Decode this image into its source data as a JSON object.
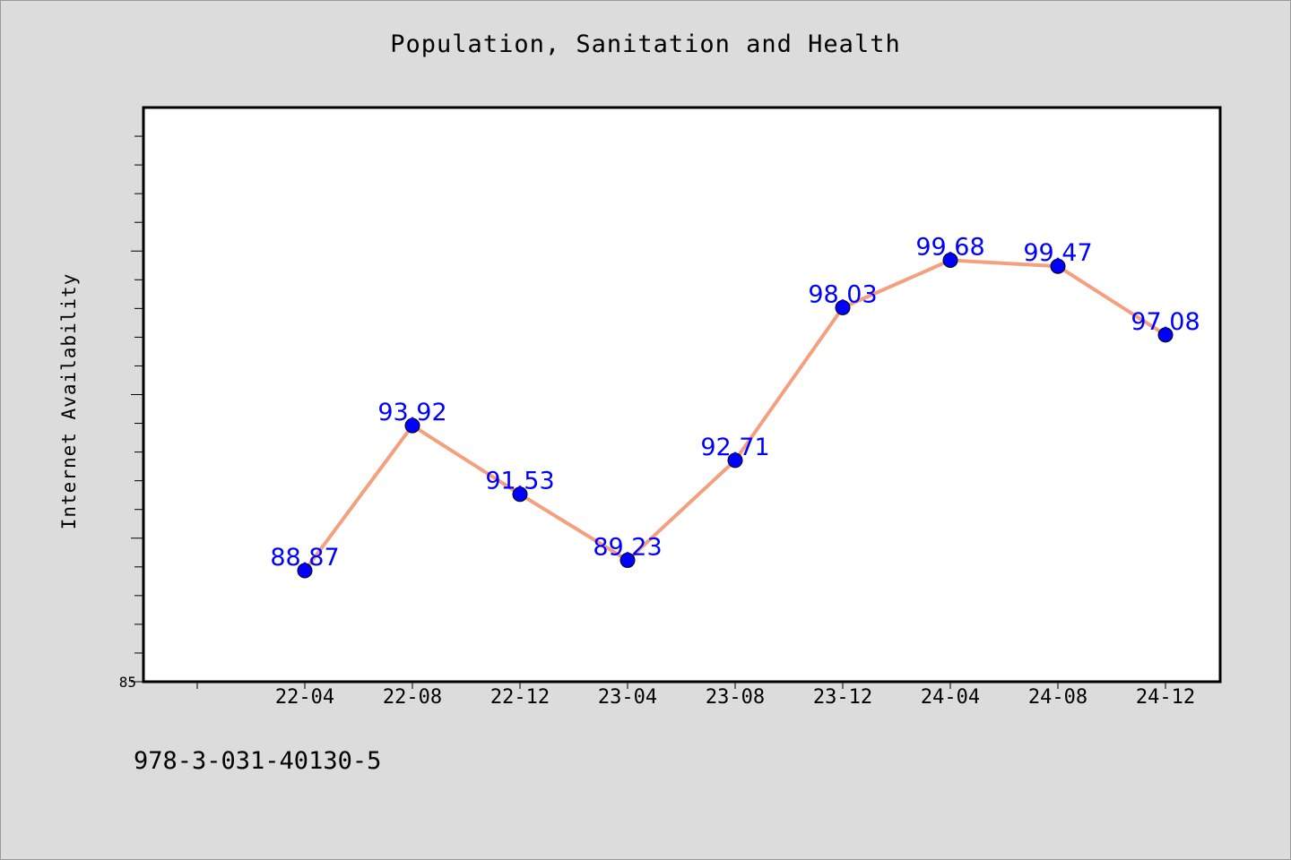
{
  "page": {
    "footer_text": "978-3-031-40130-5"
  },
  "colors": {
    "background": "#dcdcdc",
    "plot_background": "#ffffff",
    "line": "#f4a07f",
    "marker": "#0000ff",
    "data_label": "#0000ff"
  },
  "chart_data": {
    "type": "line",
    "title": "Population, Sanitation and Health",
    "xlabel": "",
    "ylabel": "Internet Availability",
    "categories": [
      "22-04",
      "22-08",
      "22-12",
      "23-04",
      "23-08",
      "23-12",
      "24-04",
      "24-08",
      "24-12"
    ],
    "series": [
      {
        "values": [
          88.87,
          93.92,
          91.53,
          89.23,
          92.71,
          98.03,
          99.68,
          99.47,
          97.08
        ],
        "labels": [
          "88.87",
          "93.92",
          "91.53",
          "89.23",
          "92.71",
          "98.03",
          "99.68",
          "99.47",
          "97.08"
        ]
      }
    ],
    "ylim": [
      85,
      105
    ],
    "y_tick_labels": [
      "85"
    ],
    "grid": false,
    "legend": "none"
  }
}
